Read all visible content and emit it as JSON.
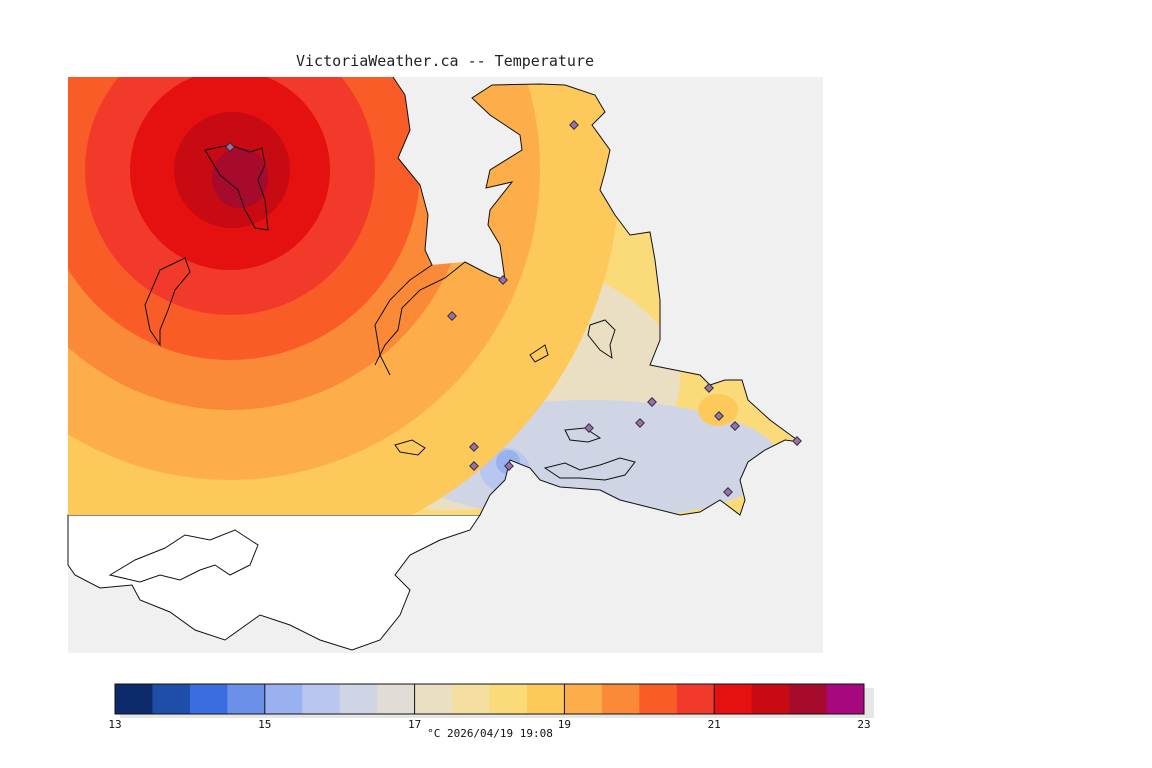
{
  "title": "VictoriaWeather.ca -- Temperature",
  "footer": "°C  2026/04/19 19:08",
  "colors": {
    "sea": "#f0f0f0",
    "land_outside": "#ffffff",
    "coast": "#111111",
    "station": "#9a6fb0"
  },
  "legend": {
    "min": 13,
    "max": 23,
    "labeled_ticks": [
      13,
      15,
      17,
      19,
      21,
      23
    ],
    "bins": [
      {
        "from": 13.0,
        "to": 13.5,
        "color": "#0d2a6b"
      },
      {
        "from": 13.5,
        "to": 14.0,
        "color": "#1f4ea8"
      },
      {
        "from": 14.0,
        "to": 14.5,
        "color": "#3a6ee0"
      },
      {
        "from": 14.5,
        "to": 15.0,
        "color": "#6a90e8"
      },
      {
        "from": 15.0,
        "to": 15.5,
        "color": "#9ab1ef"
      },
      {
        "from": 15.5,
        "to": 16.0,
        "color": "#b9c6ef"
      },
      {
        "from": 16.0,
        "to": 16.5,
        "color": "#d0d5e6"
      },
      {
        "from": 16.5,
        "to": 17.0,
        "color": "#e2dcd6"
      },
      {
        "from": 17.0,
        "to": 17.5,
        "color": "#eadfc2"
      },
      {
        "from": 17.5,
        "to": 18.0,
        "color": "#f4dea0"
      },
      {
        "from": 18.0,
        "to": 18.5,
        "color": "#fbda7a"
      },
      {
        "from": 18.5,
        "to": 19.0,
        "color": "#fdc95a"
      },
      {
        "from": 19.0,
        "to": 19.5,
        "color": "#fdae4a"
      },
      {
        "from": 19.5,
        "to": 20.0,
        "color": "#fb8a38"
      },
      {
        "from": 20.0,
        "to": 20.5,
        "color": "#f95c26"
      },
      {
        "from": 20.5,
        "to": 21.0,
        "color": "#f23a2a"
      },
      {
        "from": 21.0,
        "to": 21.5,
        "color": "#e51010"
      },
      {
        "from": 21.5,
        "to": 22.0,
        "color": "#c80a12"
      },
      {
        "from": 22.0,
        "to": 22.5,
        "color": "#a60a2c"
      },
      {
        "from": 22.5,
        "to": 23.0,
        "color": "#a8087e"
      }
    ]
  }
}
